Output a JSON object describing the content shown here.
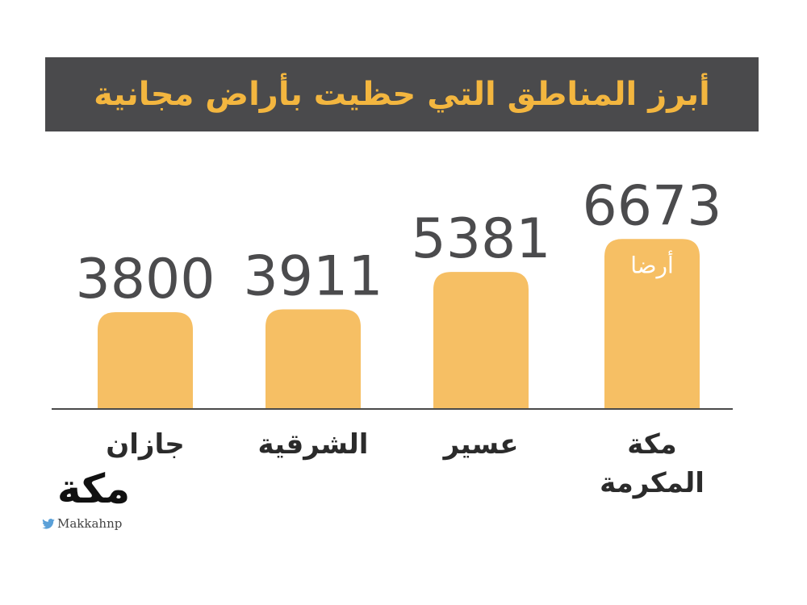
{
  "header": {
    "title": "أبرز المناطق التي حظيت بأراض مجانية"
  },
  "chart_data": {
    "type": "bar",
    "categories": [
      "جازان",
      "الشرقية",
      "عسير",
      "مكة المكرمة"
    ],
    "values": [
      3800,
      3911,
      5381,
      6673
    ],
    "unit_label": "أرضا",
    "colors": {
      "bar": "#f6bf64",
      "title_bg": "#4a4a4c",
      "title_text": "#f3b63f",
      "value_text": "#4b4b4d"
    }
  },
  "logo": {
    "mark": "مكة",
    "handle": "Makkahnp"
  }
}
